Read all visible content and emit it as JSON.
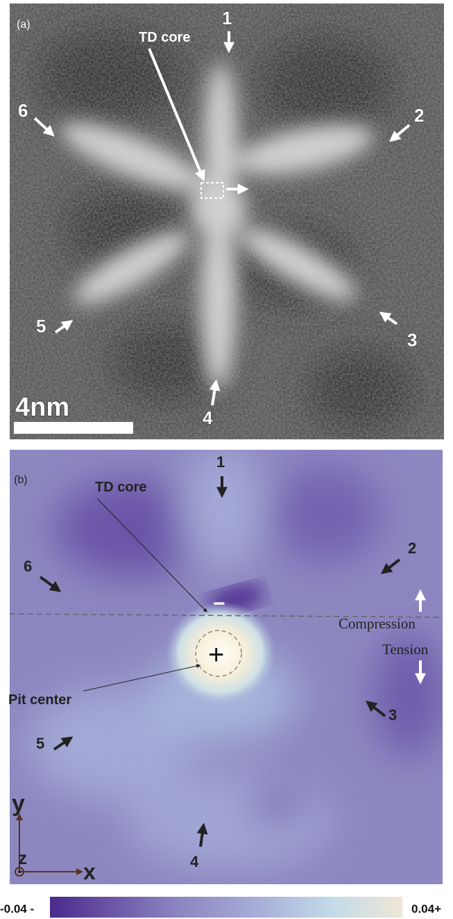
{
  "panel_a": {
    "label": "(a)",
    "core_label": "TD core",
    "arrows": [
      "1",
      "2",
      "3",
      "4",
      "5",
      "6"
    ],
    "scale_bar": "4nm"
  },
  "panel_b": {
    "label": "(b)",
    "core_label": "TD core",
    "pit_label": "Pit center",
    "arrows": [
      "1",
      "2",
      "3",
      "4",
      "5",
      "6"
    ],
    "compression": "Compression",
    "tension": "Tension",
    "minus": "−",
    "plus": "+",
    "axes": {
      "x": "x",
      "y": "y",
      "z": "z"
    }
  },
  "colorbar": {
    "min_label": "-0.04 -",
    "max_label": "0.04+"
  }
}
